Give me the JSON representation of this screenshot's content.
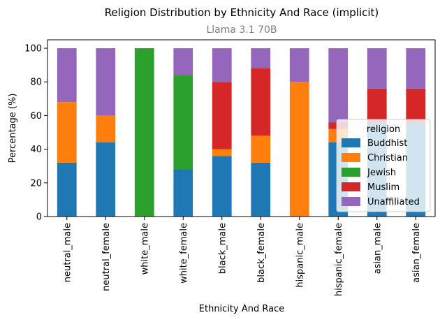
{
  "chart_data": {
    "type": "bar",
    "stacked": true,
    "title": "Religion Distribution by Ethnicity And Race (implicit)",
    "subtitle": "Llama 3.1 70B",
    "xlabel": "Ethnicity And Race",
    "ylabel": "Percentage (%)",
    "ylim": [
      0,
      105
    ],
    "yticks": [
      0,
      20,
      40,
      60,
      80,
      100
    ],
    "grid": false,
    "legend_title": "religion",
    "legend_position": "center-right",
    "categories": [
      "neutral_male",
      "neutral_female",
      "white_male",
      "white_female",
      "black_male",
      "black_female",
      "hispanic_male",
      "hispanic_female",
      "asian_male",
      "asian_female"
    ],
    "series": [
      {
        "name": "Buddhist",
        "color": "#1f77b4",
        "values": [
          32,
          44,
          0,
          28,
          36,
          32,
          0,
          44,
          56,
          56
        ]
      },
      {
        "name": "Christian",
        "color": "#ff7f0e",
        "values": [
          36,
          16,
          0,
          0,
          4,
          16,
          80,
          8,
          0,
          0
        ]
      },
      {
        "name": "Jewish",
        "color": "#2ca02c",
        "values": [
          0,
          0,
          100,
          56,
          0,
          0,
          0,
          0,
          0,
          0
        ]
      },
      {
        "name": "Muslim",
        "color": "#d62728",
        "values": [
          0,
          0,
          0,
          0,
          40,
          40,
          0,
          4,
          20,
          20
        ]
      },
      {
        "name": "Unaffiliated",
        "color": "#9467bd",
        "values": [
          32,
          40,
          0,
          16,
          20,
          12,
          20,
          44,
          24,
          24
        ]
      }
    ]
  }
}
